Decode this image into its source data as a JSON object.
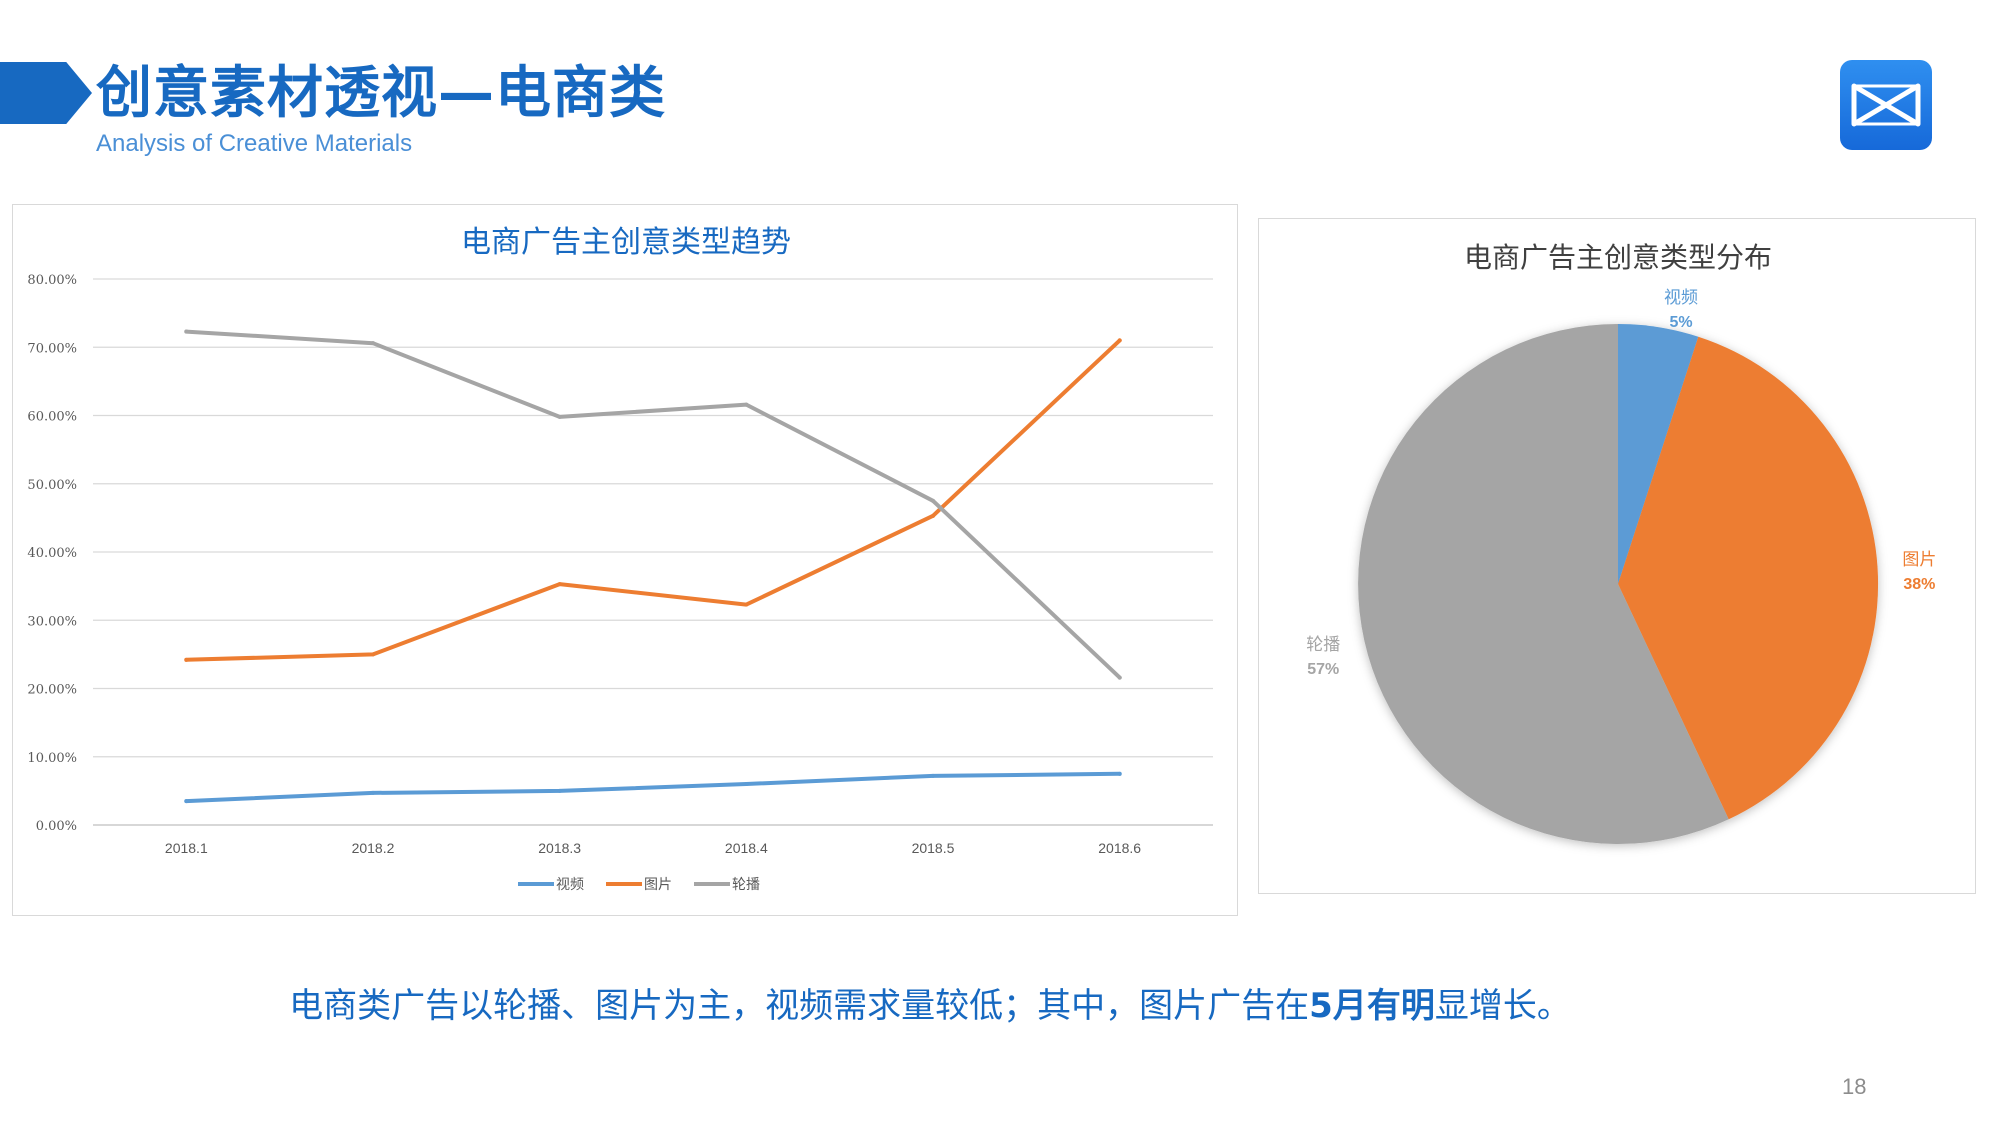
{
  "header": {
    "title": "创意素材透视—电商类",
    "subtitle": "Analysis of Creative Materials"
  },
  "footer": {
    "caption_pre": "电商类广告以轮播、图片为主，视频需求量较低；其中，图片广告在",
    "caption_bold": "5月有明",
    "caption_post": "显增长。",
    "page_number": "18"
  },
  "colors": {
    "brand": "#1769c1",
    "video": "#5b9bd5",
    "image": "#ed7d31",
    "carousel": "#a5a5a5"
  },
  "chart_data": [
    {
      "type": "line",
      "title": "电商广告主创意类型趋势",
      "categories": [
        "2018.1",
        "2018.2",
        "2018.3",
        "2018.4",
        "2018.5",
        "2018.6"
      ],
      "series": [
        {
          "name": "视频",
          "color": "#5b9bd5",
          "values": [
            3.5,
            4.7,
            5.0,
            6.0,
            7.2,
            7.5
          ]
        },
        {
          "name": "图片",
          "color": "#ed7d31",
          "values": [
            24.2,
            25.0,
            35.3,
            32.3,
            45.3,
            71.0
          ]
        },
        {
          "name": "轮播",
          "color": "#a5a5a5",
          "values": [
            72.3,
            70.6,
            59.8,
            61.6,
            47.5,
            21.6
          ]
        }
      ],
      "ylim": [
        0,
        80
      ],
      "yticks": [
        "0.00%",
        "10.00%",
        "20.00%",
        "30.00%",
        "40.00%",
        "50.00%",
        "60.00%",
        "70.00%",
        "80.00%"
      ],
      "grid": true,
      "legend": "bottom"
    },
    {
      "type": "pie",
      "title": "电商广告主创意类型分布",
      "slices": [
        {
          "label": "视频",
          "value": 5,
          "display": "5%",
          "color": "#5b9bd5"
        },
        {
          "label": "图片",
          "value": 38,
          "display": "38%",
          "color": "#ed7d31"
        },
        {
          "label": "轮播",
          "value": 57,
          "display": "57%",
          "color": "#a5a5a5"
        }
      ]
    }
  ]
}
